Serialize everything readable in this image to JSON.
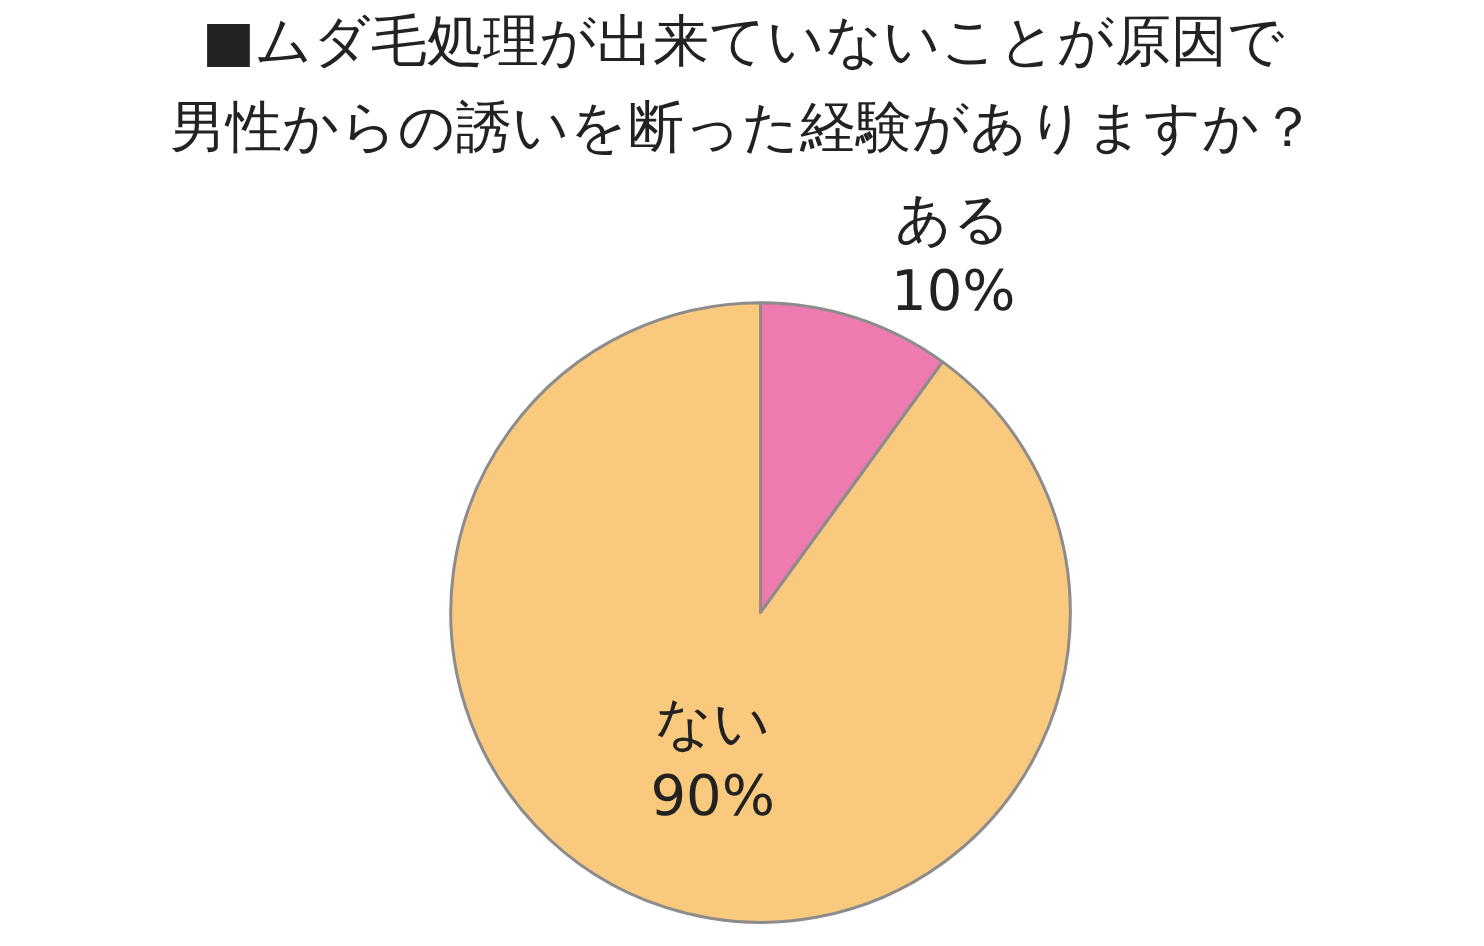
{
  "chart_data": {
    "type": "pie",
    "title": "■ムダ毛処理が出来ていないことが原因で",
    "subtitle": "男性からの誘いを断った経験がありますか？",
    "categories": [
      "ある",
      "ない"
    ],
    "values": [
      10,
      90
    ],
    "value_labels": [
      "10%",
      "90%"
    ],
    "colors": [
      "#ee7bb0",
      "#f9c97e"
    ],
    "legend": false
  }
}
